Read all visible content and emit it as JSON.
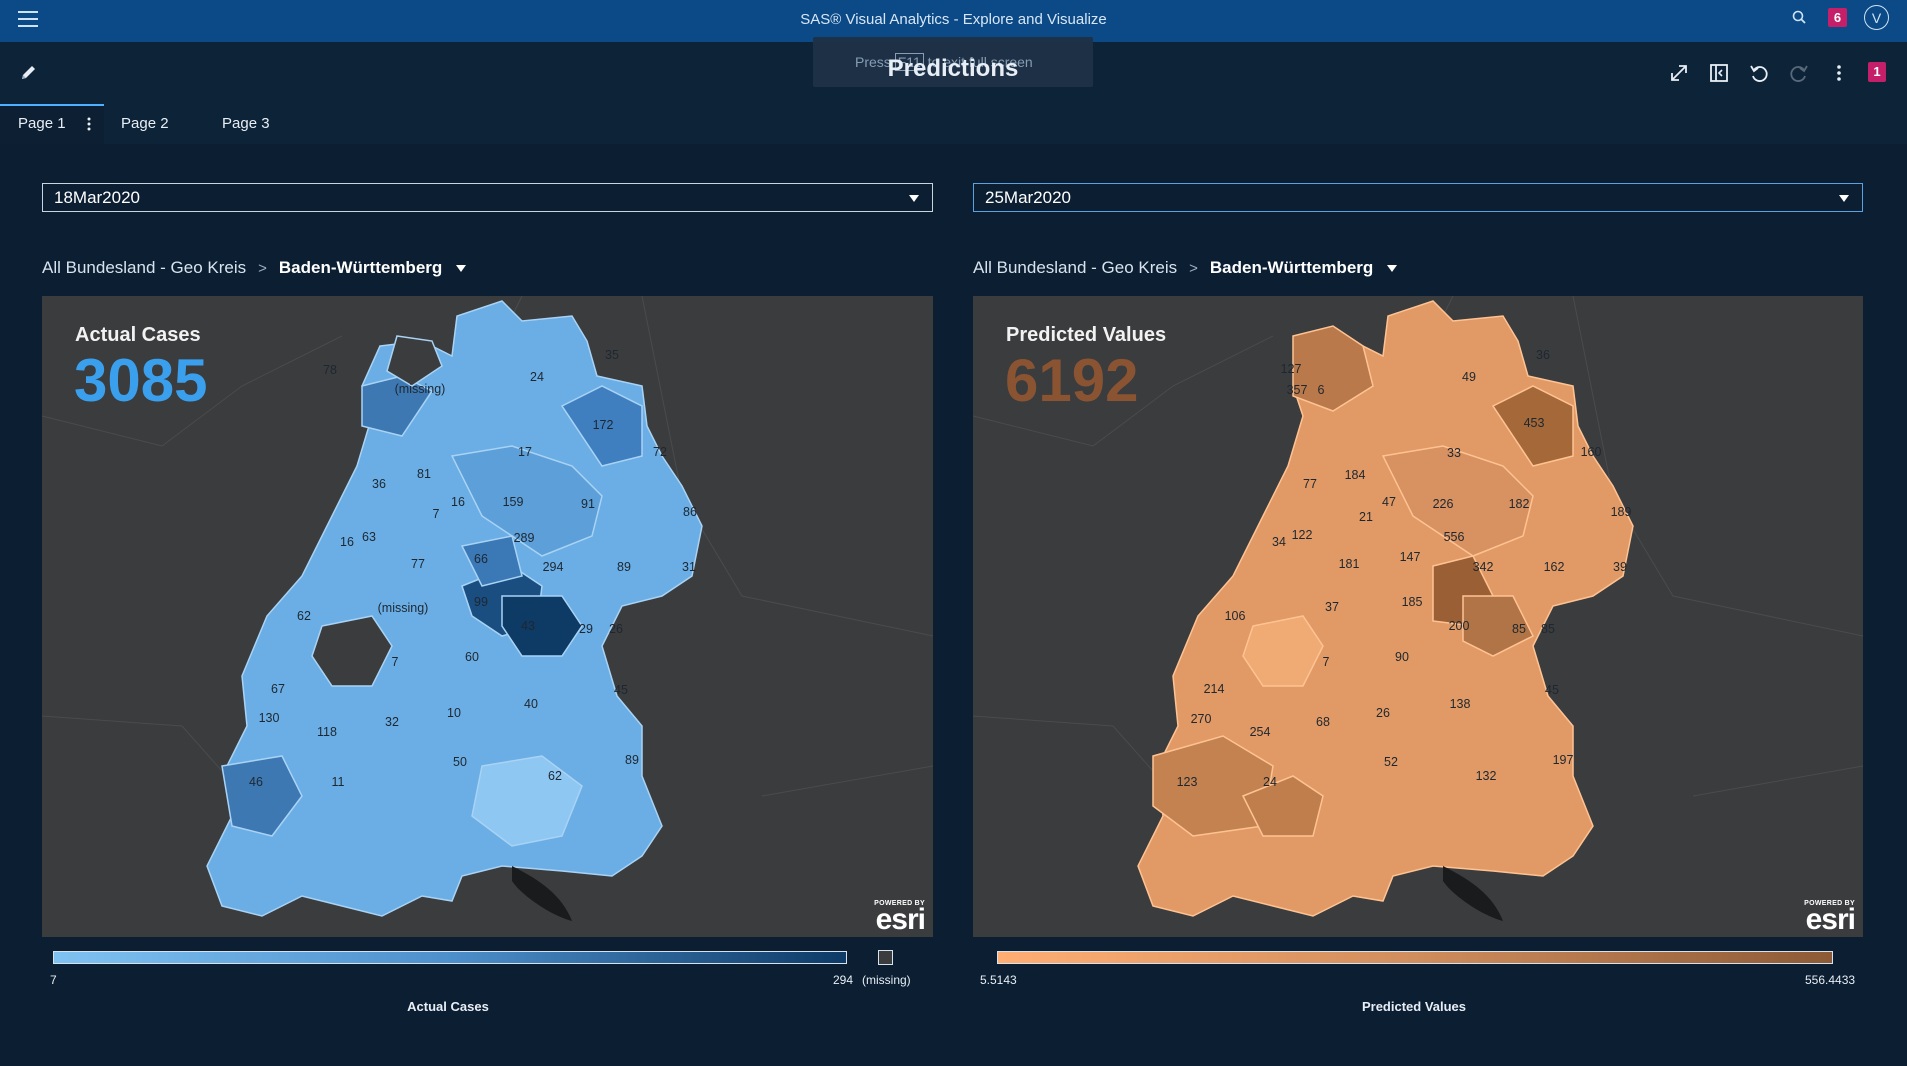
{
  "header": {
    "app_title": "SAS® Visual Analytics - Explore and Visualize",
    "notification_count": "6",
    "user_initial": "V"
  },
  "toolbar": {
    "report_title": "Predictions",
    "fullscreen_hint_before": "Press",
    "fullscreen_hint_key": "F11",
    "fullscreen_hint_after": "to exit full screen",
    "badge_count": "1"
  },
  "tabs": [
    {
      "label": "Page 1",
      "active": true
    },
    {
      "label": "Page 2",
      "active": false
    },
    {
      "label": "Page 3",
      "active": false
    }
  ],
  "left": {
    "date_select": "18Mar2020",
    "breadcrumb_all": "All Bundesland - Geo Kreis",
    "breadcrumb_current": "Baden-Württemberg",
    "kpi_title": "Actual Cases",
    "kpi_value": "3085",
    "legend_min": "7",
    "legend_max": "294",
    "legend_missing": "(missing)",
    "legend_title": "Actual Cases",
    "region_labels": [
      "78",
      "(missing)",
      "35",
      "24",
      "172",
      "72",
      "17",
      "81",
      "36",
      "16",
      "159",
      "91",
      "86",
      "7",
      "289",
      "294",
      "89",
      "31",
      "16",
      "63",
      "77",
      "66",
      "(missing)",
      "99",
      "62",
      "43",
      "29",
      "26",
      "7",
      "60",
      "67",
      "45",
      "40",
      "130",
      "32",
      "10",
      "118",
      "50",
      "89",
      "62",
      "46",
      "11"
    ]
  },
  "right": {
    "date_select": "25Mar2020",
    "breadcrumb_all": "All Bundesland - Geo Kreis",
    "breadcrumb_current": "Baden-Württemberg",
    "kpi_title": "Predicted Values",
    "kpi_value": "6192",
    "legend_min": "5.5143",
    "legend_max": "556.4433",
    "legend_title": "Predicted Values",
    "region_labels": [
      "127",
      "357",
      "6",
      "36",
      "49",
      "453",
      "160",
      "33",
      "184",
      "77",
      "47",
      "226",
      "182",
      "189",
      "21",
      "556",
      "122",
      "34",
      "181",
      "147",
      "342",
      "162",
      "39",
      "185",
      "37",
      "106",
      "200",
      "85",
      "85",
      "7",
      "90",
      "214",
      "45",
      "270",
      "68",
      "26",
      "138",
      "254",
      "52",
      "197",
      "132",
      "123",
      "24"
    ]
  },
  "map_attribution": {
    "powered_by": "POWERED BY",
    "logo": "esri"
  },
  "colors": {
    "actual_low": "#7fc2f2",
    "actual_high": "#0d3a66",
    "predicted_low": "#ffae73",
    "predicted_high": "#8c5a36",
    "kpi_actual": "#3aa0ee",
    "kpi_predicted": "#8a5433",
    "missing": "#3b3c3e"
  }
}
